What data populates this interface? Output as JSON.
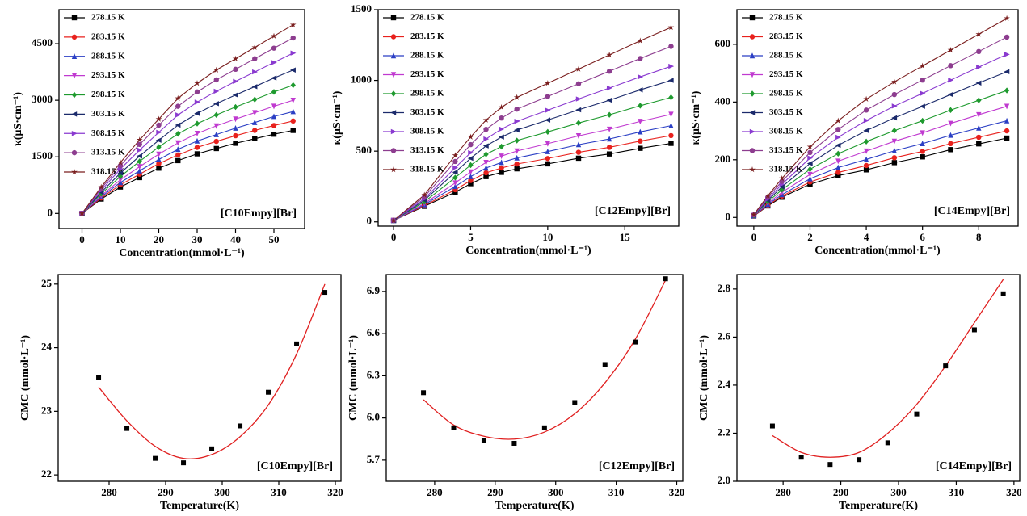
{
  "chart_data": [
    {
      "type": "line",
      "ylabel": "κ(μS·cm⁻¹)",
      "xlabel": "Concentration(mmol·L⁻¹)",
      "annotation": "[C10Empy][Br]",
      "xlim": [
        -6,
        58
      ],
      "xticks": [
        0,
        10,
        20,
        30,
        40,
        50
      ],
      "ylim": [
        -400,
        5400
      ],
      "yticks": [
        0,
        1500,
        3000,
        4500
      ],
      "x": [
        0,
        5,
        10,
        15,
        20,
        25,
        30,
        35,
        40,
        45,
        50,
        55
      ],
      "series": [
        {
          "name": "278.15 K",
          "color": "#000000",
          "marker": "square",
          "values": [
            0,
            380,
            700,
            950,
            1200,
            1400,
            1580,
            1720,
            1860,
            1980,
            2100,
            2200
          ]
        },
        {
          "name": "283.15 K",
          "color": "#e8211d",
          "marker": "circle",
          "values": [
            0,
            410,
            760,
            1040,
            1320,
            1550,
            1750,
            1910,
            2060,
            2200,
            2330,
            2450
          ]
        },
        {
          "name": "288.15 K",
          "color": "#2b3fc4",
          "marker": "triangle",
          "values": [
            0,
            440,
            820,
            1130,
            1430,
            1700,
            1920,
            2090,
            2260,
            2410,
            2570,
            2700
          ]
        },
        {
          "name": "293.15 K",
          "color": "#c03ad0",
          "marker": "triangle-down",
          "values": [
            0,
            470,
            890,
            1240,
            1570,
            1870,
            2120,
            2320,
            2500,
            2670,
            2840,
            3000
          ]
        },
        {
          "name": "298.15 K",
          "color": "#1e9a2e",
          "marker": "diamond",
          "values": [
            0,
            520,
            980,
            1380,
            1760,
            2110,
            2380,
            2610,
            2820,
            3020,
            3220,
            3400
          ]
        },
        {
          "name": "303.15 K",
          "color": "#1b2a6b",
          "marker": "triangle-left",
          "values": [
            0,
            560,
            1070,
            1520,
            1940,
            2340,
            2650,
            2910,
            3140,
            3360,
            3590,
            3800
          ]
        },
        {
          "name": "308.15 K",
          "color": "#8a3ad0",
          "marker": "triangle-right",
          "values": [
            0,
            610,
            1180,
            1680,
            2150,
            2610,
            2950,
            3240,
            3500,
            3750,
            4000,
            4250
          ]
        },
        {
          "name": "313.15 K",
          "color": "#8d3d8f",
          "marker": "circle",
          "values": [
            0,
            660,
            1270,
            1830,
            2340,
            2840,
            3220,
            3540,
            3820,
            4100,
            4380,
            4650
          ]
        },
        {
          "name": "318.15 K",
          "color": "#7a1e1e",
          "marker": "star",
          "values": [
            0,
            700,
            1350,
            1950,
            2500,
            3050,
            3450,
            3800,
            4100,
            4400,
            4700,
            5000
          ]
        }
      ]
    },
    {
      "type": "line",
      "ylabel": "κ(μS·cm⁻¹)",
      "xlabel": "Concentration(mmol·L⁻¹)",
      "annotation": "[C12Empy][Br]",
      "xlim": [
        -1,
        18.5
      ],
      "xticks": [
        0,
        5,
        10,
        15
      ],
      "ylim": [
        -30,
        1500
      ],
      "yticks": [
        0,
        500,
        1000,
        1500
      ],
      "x": [
        0,
        2,
        4,
        5,
        6,
        7,
        8,
        10,
        12,
        14,
        16,
        18
      ],
      "series": [
        {
          "name": "278.15 K",
          "color": "#000000",
          "marker": "square",
          "values": [
            10,
            110,
            210,
            270,
            320,
            350,
            375,
            410,
            450,
            480,
            520,
            555
          ]
        },
        {
          "name": "283.15 K",
          "color": "#e8211d",
          "marker": "circle",
          "values": [
            10,
            115,
            227,
            292,
            347,
            381,
            409,
            448,
            492,
            527,
            571,
            610
          ]
        },
        {
          "name": "288.15 K",
          "color": "#2b3fc4",
          "marker": "triangle",
          "values": [
            10,
            122,
            250,
            320,
            381,
            420,
            452,
            497,
            546,
            586,
            636,
            680
          ]
        },
        {
          "name": "293.15 K",
          "color": "#c03ad0",
          "marker": "triangle-down",
          "values": [
            10,
            130,
            275,
            353,
            420,
            465,
            501,
            553,
            608,
            655,
            710,
            760
          ]
        },
        {
          "name": "298.15 K",
          "color": "#1e9a2e",
          "marker": "diamond",
          "values": [
            10,
            142,
            313,
            401,
            478,
            532,
            575,
            636,
            699,
            757,
            821,
            880
          ]
        },
        {
          "name": "303.15 K",
          "color": "#1b2a6b",
          "marker": "triangle-left",
          "values": [
            10,
            153,
            351,
            449,
            537,
            600,
            649,
            720,
            792,
            860,
            933,
            1000
          ]
        },
        {
          "name": "308.15 K",
          "color": "#8a3ad0",
          "marker": "triangle-right",
          "values": [
            10,
            163,
            383,
            489,
            586,
            656,
            711,
            789,
            869,
            946,
            1025,
            1100
          ]
        },
        {
          "name": "313.15 K",
          "color": "#8d3d8f",
          "marker": "circle",
          "values": [
            10,
            177,
            427,
            546,
            654,
            734,
            797,
            886,
            976,
            1065,
            1155,
            1240
          ]
        },
        {
          "name": "318.15 K",
          "color": "#7a1e1e",
          "marker": "star",
          "values": [
            10,
            190,
            470,
            600,
            720,
            810,
            880,
            980,
            1080,
            1180,
            1280,
            1375
          ]
        }
      ]
    },
    {
      "type": "line",
      "ylabel": "κ(μS·cm⁻¹)",
      "xlabel": "Concentration(mmol·L⁻¹)",
      "annotation": "[C14Empy][Br]",
      "xlim": [
        -0.6,
        9.4
      ],
      "xticks": [
        0,
        2,
        4,
        6,
        8
      ],
      "ylim": [
        -30,
        720
      ],
      "yticks": [
        0,
        200,
        400,
        600
      ],
      "x": [
        0,
        0.5,
        1,
        2,
        3,
        4,
        5,
        6,
        7,
        8,
        9
      ],
      "series": [
        {
          "name": "278.15 K",
          "color": "#000000",
          "marker": "square",
          "values": [
            5,
            40,
            70,
            115,
            145,
            165,
            190,
            210,
            235,
            255,
            275
          ]
        },
        {
          "name": "283.15 K",
          "color": "#e8211d",
          "marker": "circle",
          "values": [
            5,
            42,
            74,
            123,
            156,
            180,
            207,
            229,
            256,
            278,
            300
          ]
        },
        {
          "name": "288.15 K",
          "color": "#2b3fc4",
          "marker": "triangle",
          "values": [
            6,
            45,
            79,
            134,
            173,
            201,
            231,
            256,
            285,
            310,
            335
          ]
        },
        {
          "name": "293.15 K",
          "color": "#c03ad0",
          "marker": "triangle-down",
          "values": [
            6,
            49,
            87,
            149,
            195,
            230,
            264,
            293,
            326,
            356,
            385
          ]
        },
        {
          "name": "298.15 K",
          "color": "#1e9a2e",
          "marker": "diamond",
          "values": [
            7,
            54,
            96,
            167,
            221,
            263,
            301,
            335,
            372,
            406,
            440
          ]
        },
        {
          "name": "303.15 K",
          "color": "#1b2a6b",
          "marker": "triangle-left",
          "values": [
            8,
            59,
            106,
            187,
            250,
            301,
            345,
            385,
            426,
            466,
            505
          ]
        },
        {
          "name": "308.15 K",
          "color": "#8a3ad0",
          "marker": "triangle-right",
          "values": [
            8,
            64,
            115,
            206,
            278,
            336,
            386,
            430,
            476,
            521,
            565
          ]
        },
        {
          "name": "313.15 K",
          "color": "#8d3d8f",
          "marker": "circle",
          "values": [
            9,
            70,
            125,
            225,
            305,
            372,
            426,
            476,
            526,
            575,
            625
          ]
        },
        {
          "name": "318.15 K",
          "color": "#7a1e1e",
          "marker": "star",
          "values": [
            10,
            75,
            135,
            245,
            335,
            410,
            470,
            525,
            580,
            635,
            690
          ]
        }
      ]
    },
    {
      "type": "scatter",
      "ylabel": "CMC (mmol·L⁻¹)",
      "xlabel": "Temperature(K)",
      "annotation": "[C10Empy][Br]",
      "xlim": [
        271,
        321
      ],
      "xticks": [
        280,
        290,
        300,
        310,
        320
      ],
      "ylim": [
        21.9,
        25.15
      ],
      "yticks": [
        22,
        23,
        24,
        25
      ],
      "x": [
        278.15,
        283.15,
        288.15,
        293.15,
        298.15,
        303.15,
        308.15,
        313.15,
        318.15
      ],
      "color": "#000000",
      "values": [
        23.53,
        22.73,
        22.26,
        22.19,
        22.41,
        22.77,
        23.3,
        24.06,
        24.87
      ],
      "fit_color": "#e02020",
      "fit_x": [
        278.15,
        283.15,
        288.15,
        293.15,
        298.15,
        303.15,
        308.15,
        313.15,
        318.15
      ],
      "fit_values": [
        23.38,
        22.85,
        22.45,
        22.26,
        22.32,
        22.6,
        23.1,
        23.9,
        25.0
      ]
    },
    {
      "type": "scatter",
      "ylabel": "CMC (mmol·L⁻¹)",
      "xlabel": "Temperature(K)",
      "annotation": "[C12Empy][Br]",
      "xlim": [
        272,
        321
      ],
      "xticks": [
        280,
        290,
        300,
        310,
        320
      ],
      "ylim": [
        5.55,
        7.02
      ],
      "yticks": [
        5.7,
        {
          "value": 6,
          "label": "6.0"
        },
        6.3,
        6.6,
        6.9
      ],
      "x": [
        278.15,
        283.15,
        288.15,
        293.15,
        298.15,
        303.15,
        308.15,
        313.15,
        318.15
      ],
      "color": "#000000",
      "values": [
        6.18,
        5.93,
        5.84,
        5.82,
        5.93,
        6.11,
        6.38,
        6.54,
        6.99
      ],
      "fit_color": "#e02020",
      "fit_x": [
        278.15,
        283.15,
        288.15,
        293.15,
        298.15,
        303.15,
        308.15,
        313.15,
        318.15
      ],
      "fit_values": [
        6.13,
        5.95,
        5.87,
        5.85,
        5.9,
        6.03,
        6.25,
        6.56,
        6.98
      ]
    },
    {
      "type": "scatter",
      "ylabel": "CMC (mmol·L⁻¹)",
      "xlabel": "Temperature(K)",
      "annotation": "[C14Empy][Br]",
      "xlim": [
        272,
        321
      ],
      "xticks": [
        280,
        290,
        300,
        310,
        320
      ],
      "ylim": [
        2.0,
        2.86
      ],
      "yticks": [
        {
          "value": 2,
          "label": "2.0"
        },
        2.2,
        2.4,
        2.6,
        2.8
      ],
      "x": [
        278.15,
        283.15,
        288.15,
        293.15,
        298.15,
        303.15,
        308.15,
        313.15,
        318.15
      ],
      "color": "#000000",
      "values": [
        2.23,
        2.1,
        2.07,
        2.09,
        2.16,
        2.28,
        2.48,
        2.63,
        2.78
      ],
      "fit_color": "#e02020",
      "fit_x": [
        278.15,
        283.15,
        288.15,
        293.15,
        298.15,
        303.15,
        308.15,
        313.15,
        318.15
      ],
      "fit_values": [
        2.19,
        2.12,
        2.1,
        2.12,
        2.2,
        2.32,
        2.48,
        2.66,
        2.84
      ]
    }
  ]
}
